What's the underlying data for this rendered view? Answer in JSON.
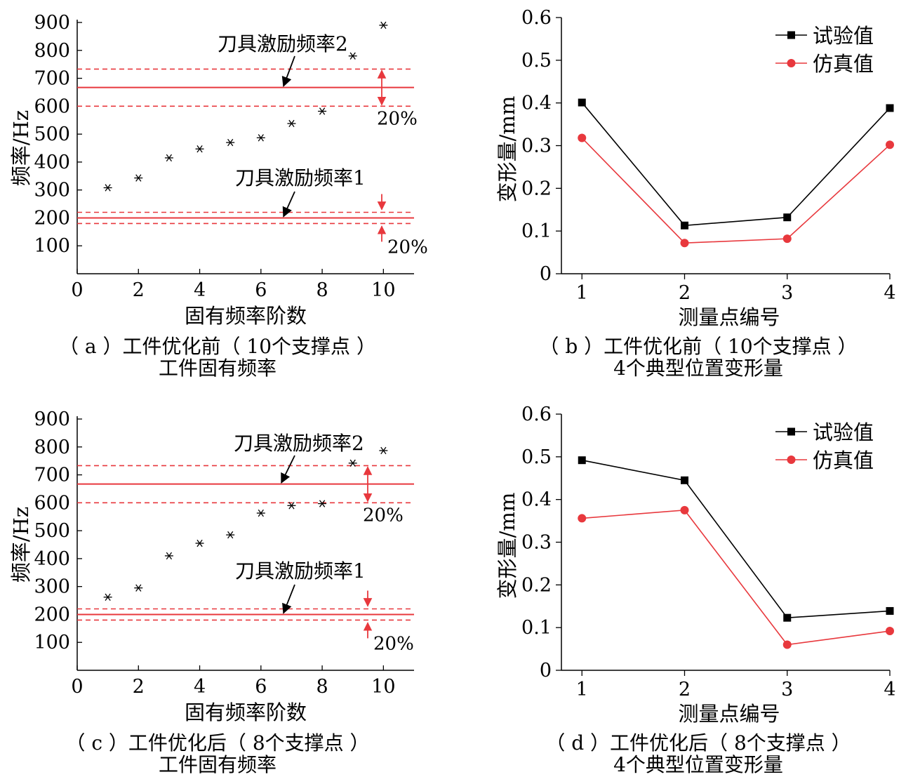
{
  "chart_data": [
    {
      "id": "a",
      "type": "scatter",
      "xlabel": "固有频率阶数",
      "ylabel": "频率/Hz",
      "xlim": [
        0,
        11
      ],
      "ylim": [
        0,
        900
      ],
      "xticks": [
        0,
        2,
        4,
        6,
        8,
        10
      ],
      "yticks": [
        100,
        200,
        300,
        400,
        500,
        600,
        700,
        800,
        900
      ],
      "points": [
        [
          1,
          308
        ],
        [
          2,
          343
        ],
        [
          3,
          415
        ],
        [
          4,
          447
        ],
        [
          5,
          470
        ],
        [
          6,
          487
        ],
        [
          7,
          538
        ],
        [
          8,
          582
        ],
        [
          9,
          780
        ],
        [
          10,
          890
        ]
      ],
      "marker": "asterisk",
      "lines": [
        {
          "label": "刀具激励频率2",
          "value": 667,
          "band": [
            600,
            733
          ],
          "band_label": "20%"
        },
        {
          "label": "刀具激励频率1",
          "value": 200,
          "band": [
            180,
            220
          ],
          "band_label": "20%"
        }
      ],
      "caption_line1": "（ a ）工件优化前（ 10个支撑点 ）",
      "caption_line2": "工件固有频率"
    },
    {
      "id": "b",
      "type": "line",
      "xlabel": "测量点编号",
      "ylabel": "变形量/mm",
      "xlim": [
        0.8,
        4.0
      ],
      "ylim": [
        0,
        0.6
      ],
      "x": [
        1,
        2,
        3,
        4
      ],
      "yticks": [
        0,
        0.1,
        0.2,
        0.3,
        0.4,
        0.5,
        0.6
      ],
      "ytick_labels": [
        "0",
        "0.1",
        "0.2",
        "0.3",
        "0.4",
        "0.5",
        "0.6"
      ],
      "legend_position": "top-right",
      "series": [
        {
          "name": "试验值",
          "color": "#000000",
          "marker": "square",
          "values": [
            0.401,
            0.113,
            0.132,
            0.388
          ]
        },
        {
          "name": "仿真值",
          "color": "#e8383d",
          "marker": "circle",
          "values": [
            0.318,
            0.072,
            0.082,
            0.302
          ]
        }
      ],
      "caption_line1": "（ b ）工件优化前（ 10个支撑点 ）",
      "caption_line2": "4个典型位置变形量"
    },
    {
      "id": "c",
      "type": "scatter",
      "xlabel": "固有频率阶数",
      "ylabel": "频率/Hz",
      "xlim": [
        0,
        11
      ],
      "ylim": [
        0,
        900
      ],
      "xticks": [
        0,
        2,
        4,
        6,
        8,
        10
      ],
      "yticks": [
        100,
        200,
        300,
        400,
        500,
        600,
        700,
        800,
        900
      ],
      "points": [
        [
          1,
          262
        ],
        [
          2,
          295
        ],
        [
          3,
          410
        ],
        [
          4,
          455
        ],
        [
          5,
          485
        ],
        [
          6,
          563
        ],
        [
          7,
          590
        ],
        [
          8,
          597
        ],
        [
          9,
          742
        ],
        [
          10,
          787
        ]
      ],
      "marker": "asterisk",
      "lines": [
        {
          "label": "刀具激励频率2",
          "value": 667,
          "band": [
            600,
            733
          ],
          "band_label": "20%"
        },
        {
          "label": "刀具激励频率1",
          "value": 200,
          "band": [
            180,
            220
          ],
          "band_label": "20%"
        }
      ],
      "caption_line1": "（ c ）工件优化后（ 8个支撑点 ）",
      "caption_line2": "工件固有频率"
    },
    {
      "id": "d",
      "type": "line",
      "xlabel": "测量点编号",
      "ylabel": "变形量/mm",
      "xlim": [
        0.8,
        4.0
      ],
      "ylim": [
        0,
        0.6
      ],
      "x": [
        1,
        2,
        3,
        4
      ],
      "yticks": [
        0,
        0.1,
        0.2,
        0.3,
        0.4,
        0.5,
        0.6
      ],
      "ytick_labels": [
        "0",
        "0.1",
        "0.2",
        "0.3",
        "0.4",
        "0.5",
        "0.6"
      ],
      "legend_position": "top-right",
      "series": [
        {
          "name": "试验值",
          "color": "#000000",
          "marker": "square",
          "values": [
            0.492,
            0.445,
            0.123,
            0.139
          ]
        },
        {
          "name": "仿真值",
          "color": "#e8383d",
          "marker": "circle",
          "values": [
            0.356,
            0.375,
            0.06,
            0.092
          ]
        }
      ],
      "caption_line1": "（ d ）工件优化后（ 8个支撑点 ）",
      "caption_line2": "4个典型位置变形量"
    }
  ],
  "colors": {
    "band": "#e8383d",
    "axis": "#000000"
  }
}
